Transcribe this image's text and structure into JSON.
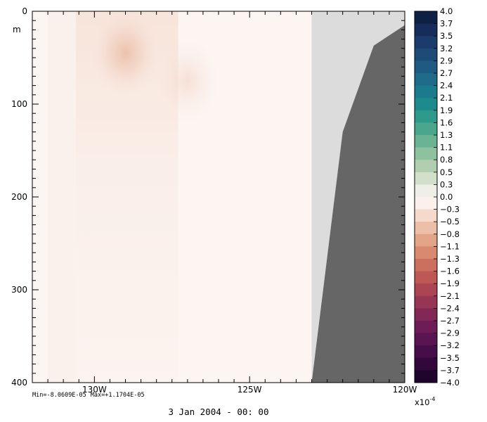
{
  "chart_data": {
    "type": "heatmap",
    "title": "",
    "xlabel": "",
    "ylabel": "m",
    "x_range": [
      -132,
      -120
    ],
    "y_range": [
      0,
      400
    ],
    "y_inverted": true,
    "x_ticks": [
      {
        "value": -130,
        "label": "130W"
      },
      {
        "value": -125,
        "label": "125W"
      },
      {
        "value": -120,
        "label": "120W"
      }
    ],
    "y_ticks": [
      {
        "value": 0,
        "label": "0"
      },
      {
        "value": 100,
        "label": "100"
      },
      {
        "value": 200,
        "label": "200"
      },
      {
        "value": 300,
        "label": "300"
      },
      {
        "value": 400,
        "label": "400"
      }
    ],
    "field_region_east_limit": -123,
    "land_profile": [
      {
        "lon": -123,
        "depth": 400
      },
      {
        "lon": -122,
        "depth": 130
      },
      {
        "lon": -121,
        "depth": 37
      },
      {
        "lon": -120,
        "depth": 15
      }
    ],
    "anomaly_peaks": [
      {
        "lon": -129,
        "depth": 45,
        "value": -2e-05
      },
      {
        "lon": -127,
        "depth": 75,
        "value": -1e-05
      }
    ],
    "colorbar": {
      "scale_label": "x10",
      "scale_exponent": "-4",
      "levels": [
        "4.0",
        "3.7",
        "3.5",
        "3.2",
        "2.9",
        "2.7",
        "2.4",
        "2.1",
        "1.9",
        "1.6",
        "1.3",
        "1.1",
        "0.8",
        "0.5",
        "0.3",
        "0.0",
        "-0.3",
        "-0.5",
        "-0.8",
        "-1.1",
        "-1.3",
        "-1.6",
        "-1.9",
        "-2.1",
        "-2.4",
        "-2.7",
        "-2.9",
        "-3.2",
        "-3.5",
        "-3.7",
        "-4.0"
      ],
      "colors": [
        "#0f2045",
        "#162d5c",
        "#1a3b6c",
        "#1e4a78",
        "#1f5a83",
        "#1e6b8a",
        "#1a7b8d",
        "#1d8b8d",
        "#2d9a8c",
        "#4aa78d",
        "#6bb493",
        "#8ec19e",
        "#b1cfb0",
        "#d2e0cb",
        "#eeefe6",
        "#fbf0ec",
        "#f5d9cb",
        "#edbfa8",
        "#e3a488",
        "#d8896f",
        "#cc6f5e",
        "#bd5855",
        "#ab4553",
        "#973554",
        "#822756",
        "#6d1c55",
        "#591452",
        "#450d49",
        "#32083c",
        "#1f042c"
      ]
    },
    "stats": {
      "min": "-8.0609E-05",
      "max": "+1.1704E-05"
    },
    "date": "3 Jan 2004 - 00: 00"
  },
  "texts": {
    "stats_min_label": "Min=",
    "stats_max_label": "Max="
  },
  "colors": {
    "background_field": "#fcf5f2",
    "land": "#666666",
    "land_shadow": "#dcdcdc",
    "anomaly": "#e0a080"
  }
}
